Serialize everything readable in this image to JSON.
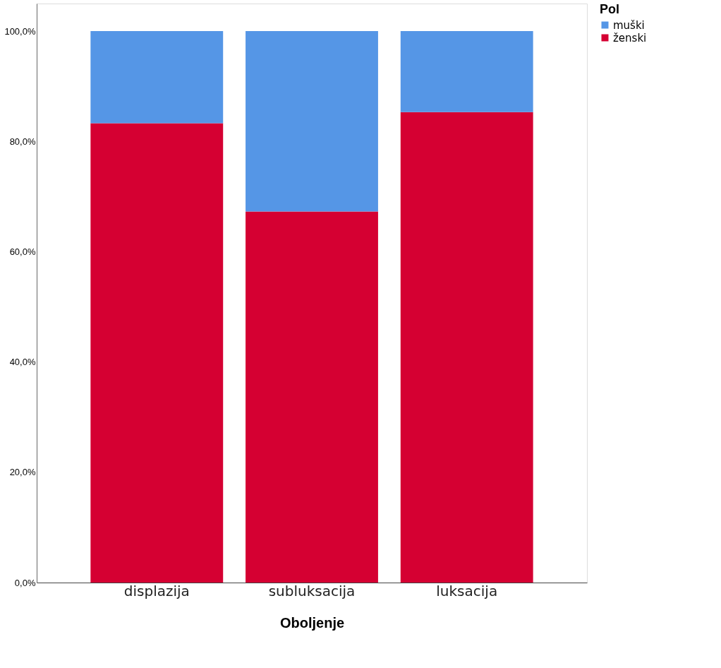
{
  "chart_data": {
    "type": "bar",
    "stacked": true,
    "xlabel": "Oboljenje",
    "legend_title": "Pol",
    "legend": "top right",
    "categories": [
      "displazija",
      "subluksacija",
      "luksacija"
    ],
    "series": [
      {
        "name": "ženski",
        "color": "#d50032",
        "values": [
          83.3,
          67.3,
          85.3
        ]
      },
      {
        "name": "muški",
        "color": "#5596e6",
        "values": [
          16.7,
          32.7,
          14.7
        ]
      }
    ],
    "ylim": [
      0,
      105
    ],
    "yticks": [
      {
        "value": 0,
        "label": "0,0%"
      },
      {
        "value": 20,
        "label": "20,0%"
      },
      {
        "value": 40,
        "label": "40,0%"
      },
      {
        "value": 60,
        "label": "60,0%"
      },
      {
        "value": 80,
        "label": "80,0%"
      },
      {
        "value": 100,
        "label": "100,0%"
      }
    ],
    "grid": false
  }
}
